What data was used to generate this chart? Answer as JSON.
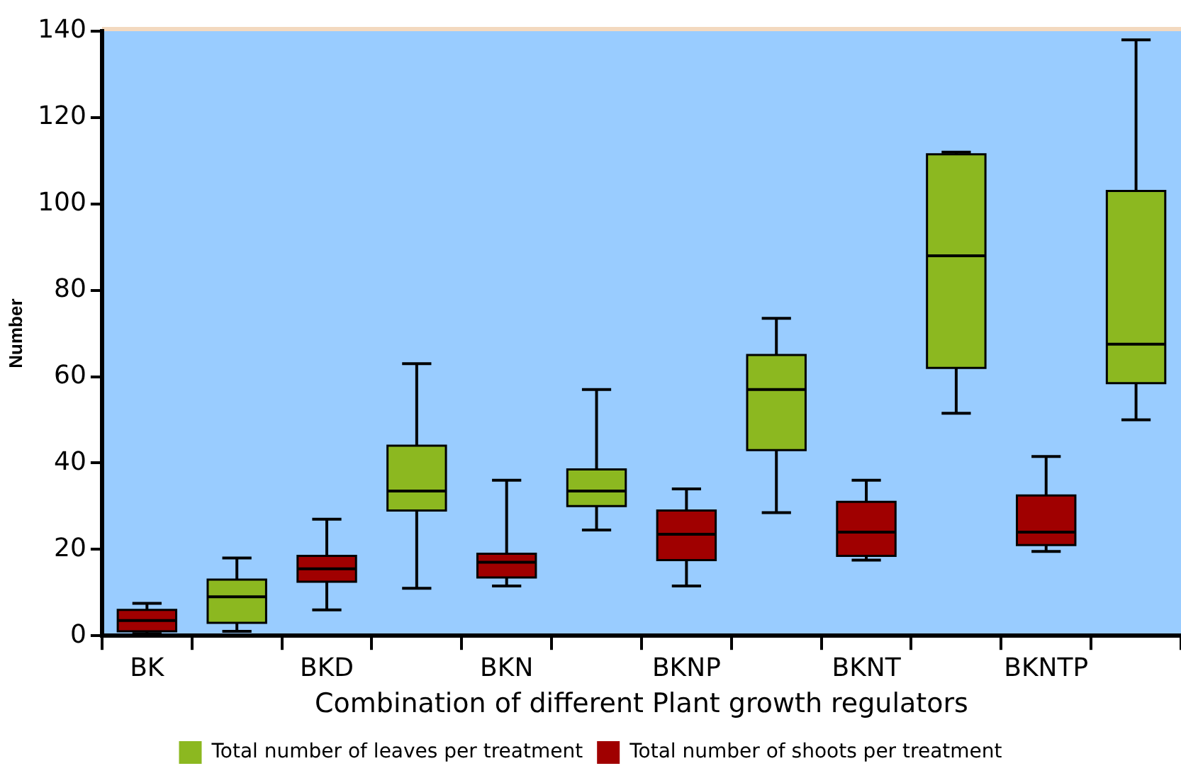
{
  "chart_data": {
    "type": "box",
    "xlabel": "Combination of different Plant growth regulators",
    "ylabel": "Number",
    "categories": [
      "BK",
      null,
      "BKD",
      null,
      "BKN",
      null,
      "BKNP",
      null,
      "BKNT",
      null,
      "BKNTP",
      null
    ],
    "ylim": [
      0,
      140
    ],
    "yticks": [
      0,
      20,
      40,
      60,
      80,
      100,
      120,
      140
    ],
    "legend": "bottom",
    "series": [
      {
        "name": "Total number of leaves per treatment",
        "color": "#8cb820",
        "boxes": [
          null,
          {
            "low": 1,
            "q1": 3,
            "median": 9,
            "q3": 13,
            "high": 18
          },
          null,
          {
            "low": 11,
            "q1": 29,
            "median": 33.5,
            "q3": 44,
            "high": 63
          },
          null,
          {
            "low": 24.5,
            "q1": 30,
            "median": 33.5,
            "q3": 38.5,
            "high": 57
          },
          null,
          {
            "low": 28.5,
            "q1": 43,
            "median": 57,
            "q3": 65,
            "high": 73.5
          },
          null,
          {
            "low": 51.5,
            "q1": 62,
            "median": 88,
            "q3": 111.5,
            "high": 112
          },
          null,
          {
            "low": 50,
            "q1": 58.5,
            "median": 67.5,
            "q3": 103,
            "high": 138
          }
        ]
      },
      {
        "name": "Total number of shoots per treatment",
        "color": "#a00000",
        "boxes": [
          {
            "low": 0.5,
            "q1": 1,
            "median": 3.5,
            "q3": 6,
            "high": 7.5
          },
          null,
          {
            "low": 6,
            "q1": 12.5,
            "median": 15.5,
            "q3": 18.5,
            "high": 27
          },
          null,
          {
            "low": 11.5,
            "q1": 13.5,
            "median": 17,
            "q3": 19,
            "high": 36
          },
          null,
          {
            "low": 11.5,
            "q1": 17.5,
            "median": 23.5,
            "q3": 29,
            "high": 34
          },
          null,
          {
            "low": 17.5,
            "q1": 18.5,
            "median": 24,
            "q3": 31,
            "high": 36
          },
          null,
          {
            "low": 19.5,
            "q1": 21,
            "median": 24,
            "q3": 32.5,
            "high": 41.5
          },
          null
        ]
      }
    ]
  }
}
